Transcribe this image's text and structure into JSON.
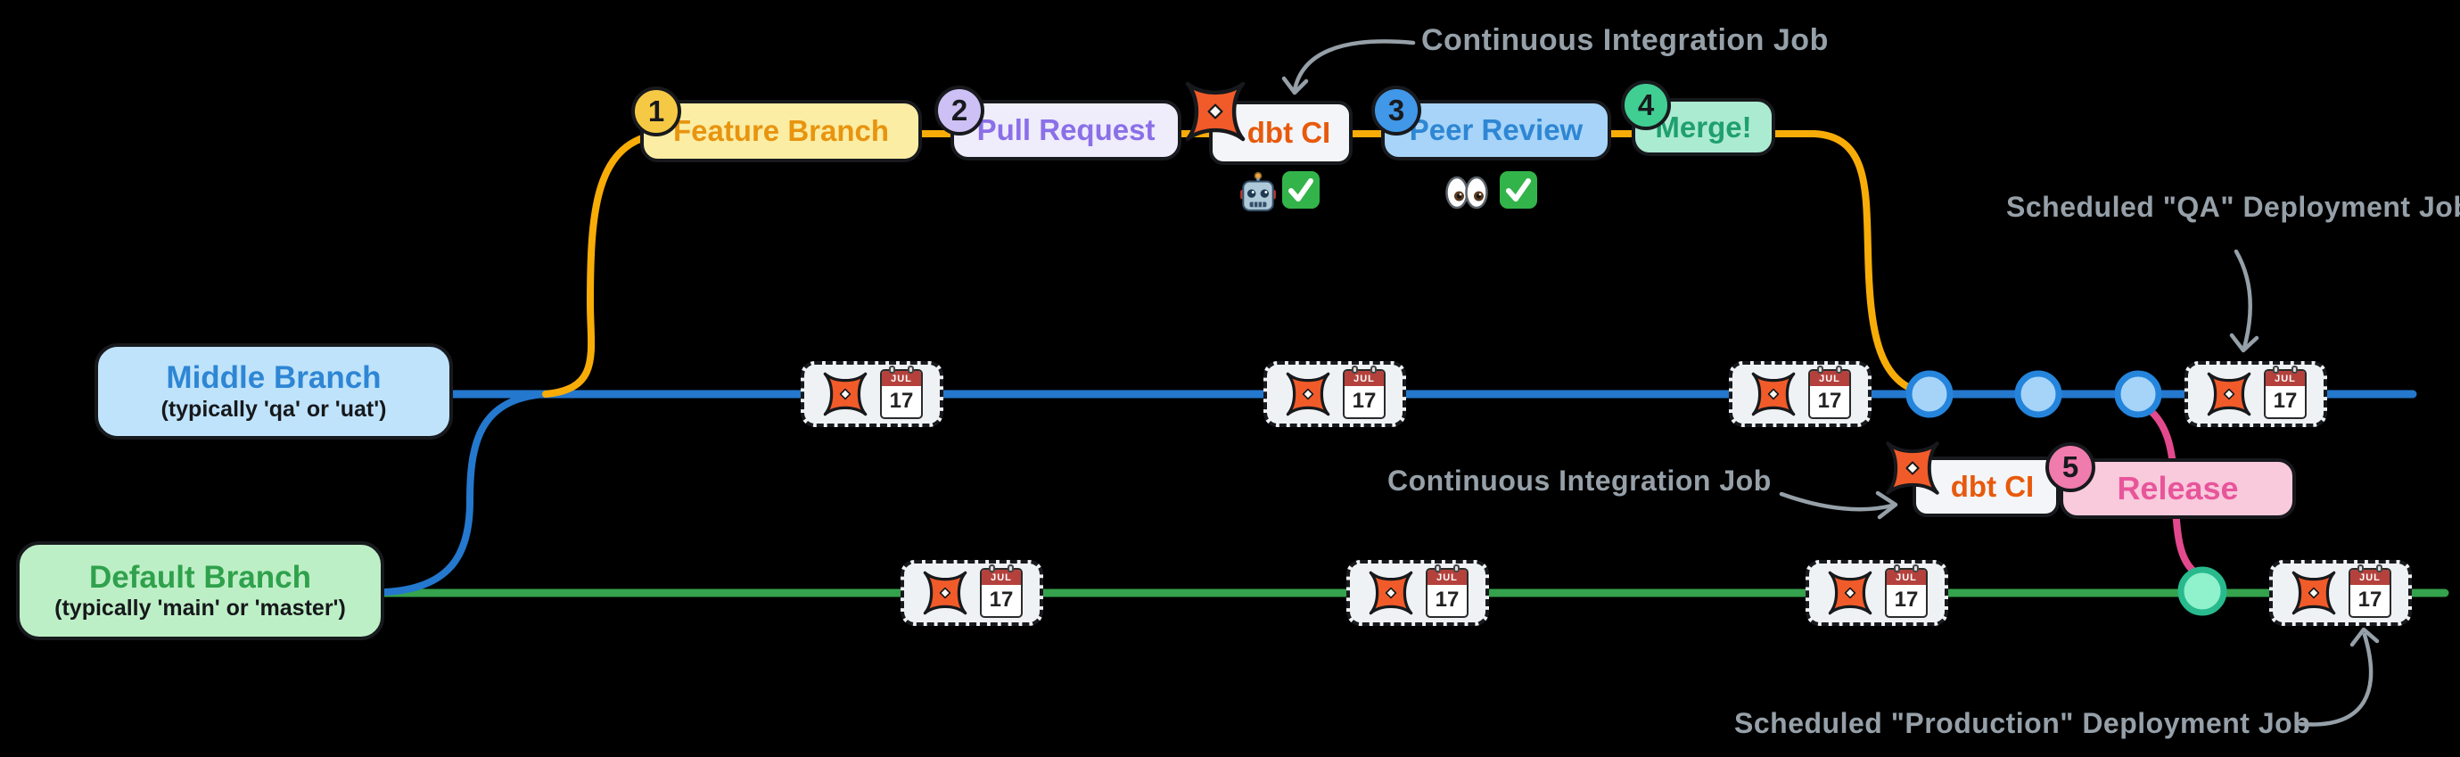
{
  "annotations": {
    "ci_top": "Continuous Integration Job",
    "ci_bottom": "Continuous Integration Job",
    "qa_deploy": "Scheduled \"QA\" Deployment Job",
    "prod_deploy": "Scheduled \"Production\" Deployment Job"
  },
  "branches": {
    "middle": {
      "title": "Middle Branch",
      "subtitle": "(typically 'qa' or 'uat')"
    },
    "default": {
      "title": "Default Branch",
      "subtitle": "(typically 'main' or 'master')"
    }
  },
  "steps": {
    "one": {
      "num": "1",
      "label": "Feature Branch"
    },
    "two": {
      "num": "2",
      "label": "Pull Request"
    },
    "three": {
      "num": "3",
      "label": "Peer Review"
    },
    "four": {
      "num": "4",
      "label": "Merge!"
    },
    "five": {
      "num": "5",
      "label": "Release"
    }
  },
  "ci_jobs": {
    "pr_ci_label": "dbt CI",
    "release_ci_label": "dbt CI"
  },
  "scheduled_badge": {
    "month": "JUL",
    "day": "17"
  },
  "icons": {
    "dbt": "dbt-logo-icon",
    "calendar": "calendar-icon",
    "robot": "robot-icon",
    "eyes": "eyes-icon",
    "check": "check-icon"
  },
  "colors": {
    "feature_branch_line": "#f7ac08",
    "middle_branch_line": "#2478ce",
    "default_branch_line": "#35a24d",
    "release_line": "#e3498d",
    "annotation_gray": "#96a0a8",
    "dbt_orange": "#f15b2a"
  }
}
